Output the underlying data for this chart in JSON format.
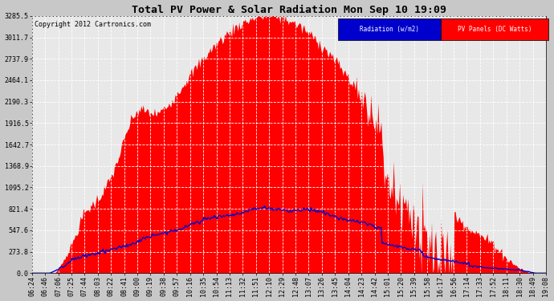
{
  "title": "Total PV Power & Solar Radiation Mon Sep 10 19:09",
  "copyright_text": "Copyright 2012 Cartronics.com",
  "yticks": [
    0.0,
    273.8,
    547.6,
    821.4,
    1095.2,
    1368.9,
    1642.7,
    1916.5,
    2190.3,
    2464.1,
    2737.9,
    3011.7,
    3285.5
  ],
  "ymax": 3285.5,
  "ymin": 0.0,
  "bg_color": "#c8c8c8",
  "plot_bg": "#e8e8e8",
  "pv_color": "#ff0000",
  "radiation_color": "#0000cc",
  "xtick_labels": [
    "06:24",
    "06:46",
    "07:06",
    "07:25",
    "07:44",
    "08:03",
    "08:22",
    "08:41",
    "09:00",
    "09:19",
    "09:38",
    "09:57",
    "10:16",
    "10:35",
    "10:54",
    "11:13",
    "11:32",
    "11:51",
    "12:10",
    "12:29",
    "12:48",
    "13:07",
    "13:26",
    "13:45",
    "14:04",
    "14:23",
    "14:42",
    "15:01",
    "15:20",
    "15:39",
    "15:58",
    "16:17",
    "16:56",
    "17:14",
    "17:33",
    "17:52",
    "18:11",
    "18:30",
    "18:49",
    "19:08"
  ],
  "title_fontsize": 9.5,
  "tick_fontsize": 6.0,
  "copyright_fontsize": 6.0
}
